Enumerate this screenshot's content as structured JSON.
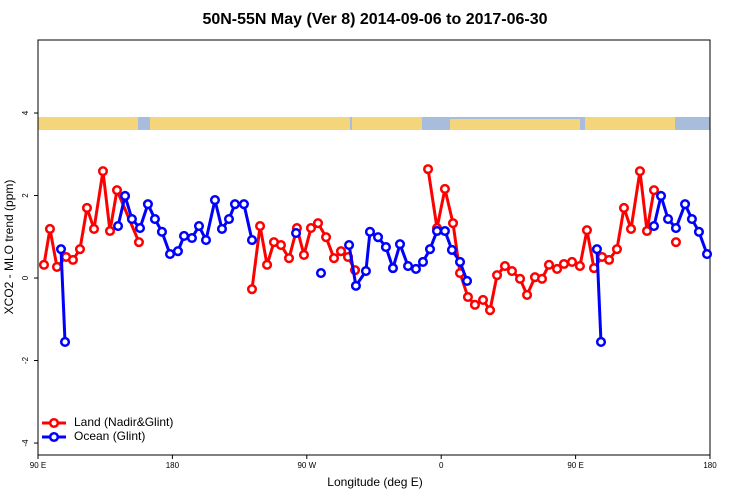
{
  "chart_data": {
    "type": "line",
    "title": "50N-55N May (Ver 8)   2014-09-06 to 2017-06-30",
    "x_label": "Longitude (deg E)",
    "y_label": "XCO2 - MLO trend (ppm)",
    "xlim": [
      90,
      540
    ],
    "ylim": [
      -4.29,
      5.77
    ],
    "xticks": [
      {
        "value": 90,
        "label": "90 E"
      },
      180,
      {
        "value": 270,
        "label": "90 W"
      },
      {
        "value": 360,
        "label": "0"
      },
      {
        "value": 450,
        "label": "90 E"
      },
      {
        "value": 540,
        "label": "180"
      }
    ],
    "yticks": [
      -4,
      -2,
      0,
      2,
      4
    ],
    "legend": "bottomleft",
    "series": [
      {
        "name": "Land (Nadir&Glint)",
        "color": "#ff0000",
        "x": [
          94.0,
          98.0,
          102.7,
          108.8,
          113.4,
          118.1,
          122.8,
          127.5,
          133.5,
          138.2,
          142.9,
          157.6,
          null,
          233.3,
          238.7,
          243.4,
          248.0,
          252.7,
          258.1,
          263.4,
          268.1,
          272.8,
          277.5,
          282.9,
          288.2,
          292.9,
          297.6,
          302.3,
          null,
          351.2,
          357.2,
          362.5,
          367.9,
          372.6,
          377.9,
          382.6,
          388.0,
          392.7,
          397.4,
          402.7,
          407.4,
          412.8,
          417.5,
          422.8,
          427.5,
          432.2,
          437.6,
          442.2,
          447.6,
          452.9,
          457.6,
          462.3,
          467.7,
          472.4,
          477.7,
          482.4,
          487.1,
          493.1,
          497.8,
          502.5,
          null,
          517.2
        ],
        "values": [
          0.32,
          1.19,
          0.27,
          0.51,
          0.44,
          0.7,
          1.7,
          1.19,
          2.59,
          1.14,
          2.13,
          0.87,
          null,
          -0.27,
          1.26,
          0.32,
          0.87,
          0.8,
          0.48,
          1.21,
          0.56,
          1.21,
          1.33,
          0.99,
          0.48,
          0.65,
          0.51,
          0.19,
          null,
          2.64,
          1.21,
          2.16,
          1.33,
          0.12,
          -0.46,
          -0.65,
          -0.53,
          -0.78,
          0.07,
          0.29,
          0.17,
          -0.02,
          -0.41,
          0.02,
          -0.02,
          0.32,
          0.22,
          0.34,
          0.39,
          0.29,
          1.16,
          0.24,
          0.51,
          0.44,
          0.7,
          1.7,
          1.19,
          2.59,
          1.14,
          2.13,
          null,
          0.87
        ]
      },
      {
        "name": "Ocean (Glint)",
        "color": "#0000ff",
        "x": [
          105.4,
          108.1,
          null,
          143.6,
          148.3,
          152.9,
          158.3,
          163.6,
          168.3,
          173.0,
          178.4,
          183.7,
          187.8,
          193.1,
          197.8,
          202.5,
          208.5,
          213.2,
          217.9,
          221.9,
          227.9,
          233.3,
          null,
          262.8,
          null,
          279.5,
          null,
          298.3,
          302.9,
          309.6,
          312.3,
          317.7,
          323.0,
          327.7,
          332.4,
          337.8,
          343.1,
          347.8,
          352.5,
          357.2,
          362.5,
          367.2,
          372.6,
          377.3,
          null,
          464.3,
          467.0,
          null,
          502.5,
          507.2,
          511.9,
          517.2,
          523.3,
          527.9,
          532.6,
          538.0
        ],
        "values": [
          0.7,
          -1.55,
          null,
          1.26,
          1.99,
          1.43,
          1.21,
          1.79,
          1.43,
          1.12,
          0.58,
          0.65,
          1.02,
          0.97,
          1.26,
          0.92,
          1.89,
          1.19,
          1.43,
          1.79,
          1.79,
          0.92,
          null,
          1.09,
          null,
          0.12,
          null,
          0.8,
          -0.19,
          0.17,
          1.12,
          0.99,
          0.75,
          0.24,
          0.82,
          0.29,
          0.22,
          0.39,
          0.7,
          1.14,
          1.14,
          0.68,
          0.39,
          -0.07,
          null,
          0.7,
          -1.55,
          null,
          1.26,
          1.99,
          1.43,
          1.21,
          1.79,
          1.43,
          1.12,
          0.58
        ]
      }
    ]
  }
}
